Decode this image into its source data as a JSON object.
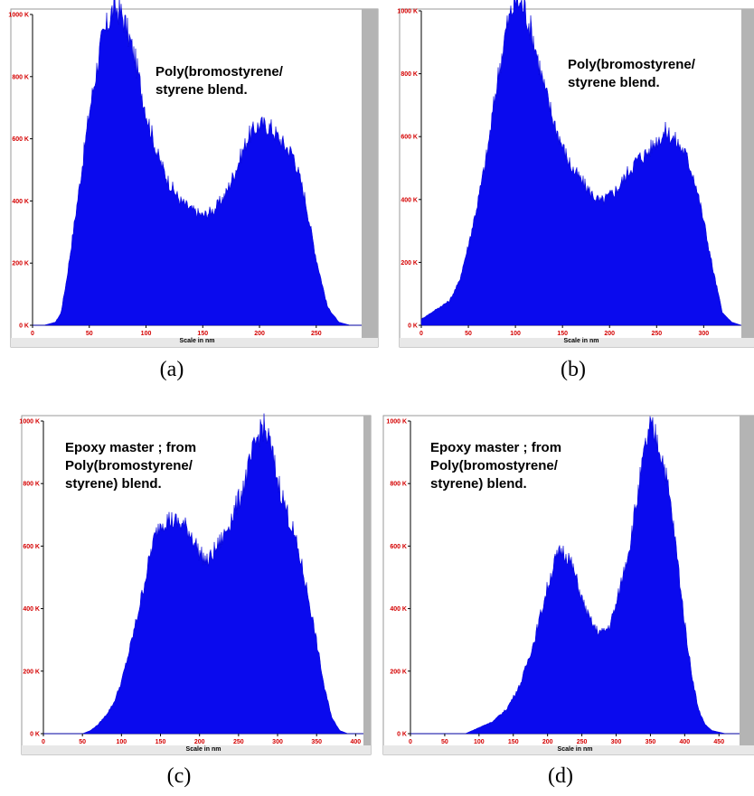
{
  "chart_data": [
    {
      "panel": "a",
      "type": "area",
      "caption": "(a)",
      "xlabel": "Scale in nm",
      "annotation": [
        "Poly(bromostyrene/",
        "styrene blend."
      ],
      "xlim": [
        0,
        290
      ],
      "ylim": [
        0,
        1000
      ],
      "xticks": [
        0,
        50,
        100,
        150,
        200,
        250
      ],
      "yticks": [
        0,
        200,
        400,
        600,
        800,
        1000
      ],
      "ytick_labels": [
        "0 K",
        "200 K",
        "400 K",
        "600 K",
        "800 K",
        "1000 K"
      ],
      "x": [
        0,
        10,
        20,
        25,
        30,
        40,
        50,
        60,
        70,
        75,
        80,
        90,
        100,
        110,
        120,
        130,
        140,
        150,
        160,
        170,
        180,
        190,
        200,
        210,
        220,
        230,
        240,
        250,
        260,
        270,
        280,
        290
      ],
      "values": [
        0,
        0,
        10,
        40,
        150,
        420,
        700,
        920,
        1030,
        1040,
        1010,
        880,
        700,
        560,
        470,
        410,
        380,
        360,
        380,
        430,
        520,
        620,
        660,
        650,
        600,
        560,
        420,
        220,
        60,
        10,
        0,
        0
      ]
    },
    {
      "panel": "b",
      "type": "area",
      "caption": "(b)",
      "xlabel": "Scale in nm",
      "annotation": [
        "Poly(bromostyrene/",
        "styrene blend."
      ],
      "xlim": [
        0,
        340
      ],
      "ylim": [
        0,
        1000
      ],
      "xticks": [
        0,
        50,
        100,
        150,
        200,
        250,
        300
      ],
      "yticks": [
        0,
        200,
        400,
        600,
        800,
        1000
      ],
      "ytick_labels": [
        "0 K",
        "200 K",
        "400 K",
        "600 K",
        "800 K",
        "1000 K"
      ],
      "x": [
        0,
        10,
        20,
        30,
        40,
        50,
        60,
        70,
        80,
        90,
        100,
        110,
        120,
        130,
        140,
        150,
        160,
        170,
        180,
        190,
        200,
        210,
        220,
        230,
        240,
        250,
        260,
        270,
        280,
        290,
        300,
        310,
        320,
        330,
        340
      ],
      "values": [
        20,
        40,
        60,
        80,
        140,
        260,
        400,
        560,
        780,
        960,
        1060,
        1030,
        920,
        780,
        670,
        580,
        510,
        470,
        430,
        400,
        420,
        450,
        500,
        540,
        560,
        600,
        630,
        600,
        560,
        480,
        340,
        180,
        40,
        10,
        0
      ]
    },
    {
      "panel": "c",
      "type": "area",
      "caption": "(c)",
      "xlabel": "Scale in nm",
      "annotation": [
        "Epoxy master ; from",
        "Poly(bromostyrene/",
        "styrene) blend."
      ],
      "xlim": [
        0,
        410
      ],
      "ylim": [
        0,
        1000
      ],
      "xticks": [
        0,
        50,
        100,
        150,
        200,
        250,
        300,
        350,
        400
      ],
      "yticks": [
        0,
        200,
        400,
        600,
        800,
        1000
      ],
      "ytick_labels": [
        "0 K",
        "200 K",
        "400 K",
        "600 K",
        "800 K",
        "1000 K"
      ],
      "x": [
        0,
        50,
        60,
        70,
        80,
        90,
        100,
        110,
        120,
        130,
        140,
        150,
        160,
        170,
        180,
        190,
        200,
        210,
        220,
        230,
        240,
        250,
        260,
        270,
        280,
        290,
        300,
        310,
        320,
        330,
        340,
        350,
        360,
        370,
        380,
        390,
        410
      ],
      "values": [
        0,
        0,
        10,
        30,
        60,
        100,
        170,
        270,
        380,
        500,
        620,
        690,
        700,
        690,
        680,
        650,
        590,
        560,
        600,
        640,
        700,
        760,
        840,
        930,
        1010,
        950,
        830,
        740,
        660,
        560,
        440,
        300,
        150,
        50,
        10,
        0,
        0
      ]
    },
    {
      "panel": "d",
      "type": "area",
      "caption": "(d)",
      "xlabel": "Scale in nm",
      "annotation": [
        "Epoxy master ; from",
        "Poly(bromostyrene/",
        "styrene) blend."
      ],
      "xlim": [
        0,
        480
      ],
      "ylim": [
        0,
        1000
      ],
      "xticks": [
        0,
        50,
        100,
        150,
        200,
        250,
        300,
        350,
        400,
        450
      ],
      "yticks": [
        0,
        200,
        400,
        600,
        800,
        1000
      ],
      "ytick_labels": [
        "0 K",
        "200 K",
        "400 K",
        "600 K",
        "800 K",
        "1000 K"
      ],
      "x": [
        0,
        80,
        100,
        120,
        140,
        160,
        180,
        200,
        210,
        220,
        230,
        240,
        250,
        260,
        270,
        280,
        290,
        300,
        310,
        320,
        330,
        340,
        345,
        350,
        360,
        370,
        380,
        390,
        400,
        410,
        420,
        430,
        440,
        460,
        480
      ],
      "values": [
        0,
        0,
        20,
        40,
        80,
        160,
        300,
        480,
        560,
        600,
        580,
        520,
        440,
        380,
        340,
        330,
        350,
        420,
        520,
        620,
        760,
        900,
        960,
        1000,
        960,
        880,
        740,
        560,
        360,
        200,
        80,
        30,
        10,
        0,
        0
      ]
    }
  ]
}
